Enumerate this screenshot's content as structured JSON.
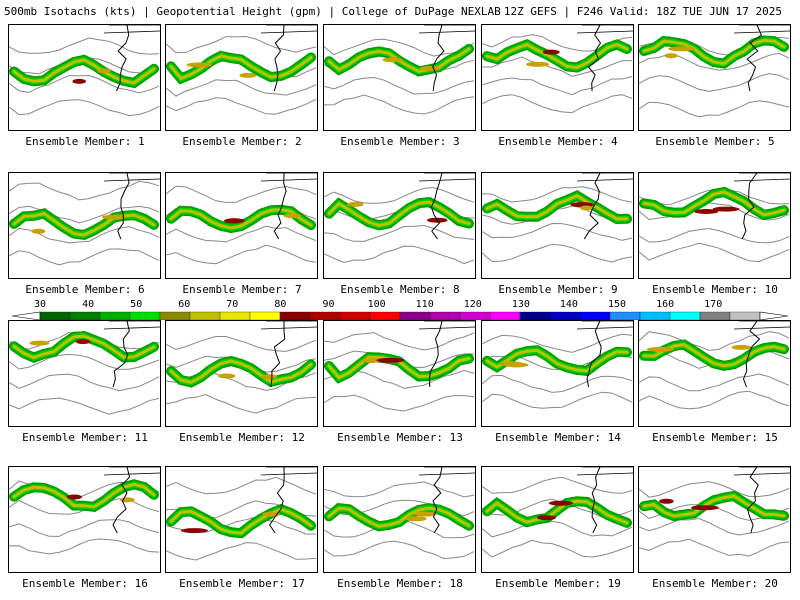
{
  "title": {
    "left": "500mb Isotachs (kts) | Geopotential Height (gpm) | College of DuPage NEXLAB",
    "right": "12Z GEFS | F246 Valid: 18Z TUE JUN 17 2025"
  },
  "panels": [
    {
      "caption": "Ensemble Member: 1"
    },
    {
      "caption": "Ensemble Member: 2"
    },
    {
      "caption": "Ensemble Member: 3"
    },
    {
      "caption": "Ensemble Member: 4"
    },
    {
      "caption": "Ensemble Member: 5"
    },
    {
      "caption": "Ensemble Member: 6"
    },
    {
      "caption": "Ensemble Member: 7"
    },
    {
      "caption": "Ensemble Member: 8"
    },
    {
      "caption": "Ensemble Member: 9"
    },
    {
      "caption": "Ensemble Member: 10"
    },
    {
      "caption": "Ensemble Member: 11"
    },
    {
      "caption": "Ensemble Member: 12"
    },
    {
      "caption": "Ensemble Member: 13"
    },
    {
      "caption": "Ensemble Member: 14"
    },
    {
      "caption": "Ensemble Member: 15"
    },
    {
      "caption": "Ensemble Member: 16"
    },
    {
      "caption": "Ensemble Member: 17"
    },
    {
      "caption": "Ensemble Member: 18"
    },
    {
      "caption": "Ensemble Member: 19"
    },
    {
      "caption": "Ensemble Member: 20"
    }
  ],
  "colorbar": {
    "labels": [
      "30",
      "40",
      "50",
      "60",
      "70",
      "80",
      "90",
      "100",
      "110",
      "120",
      "130",
      "140",
      "150",
      "160",
      "170"
    ],
    "colors": [
      "#006400",
      "#008000",
      "#00b000",
      "#00e000",
      "#8b8b00",
      "#c0c000",
      "#e6e600",
      "#ffff00",
      "#8b0000",
      "#b00000",
      "#d00000",
      "#ff0000",
      "#8b008b",
      "#b000b0",
      "#d000d0",
      "#ff00ff",
      "#00008b",
      "#0000c0",
      "#0000ff",
      "#1e90ff",
      "#00bfff",
      "#00ffff",
      "#808080",
      "#c0c0c0"
    ]
  }
}
